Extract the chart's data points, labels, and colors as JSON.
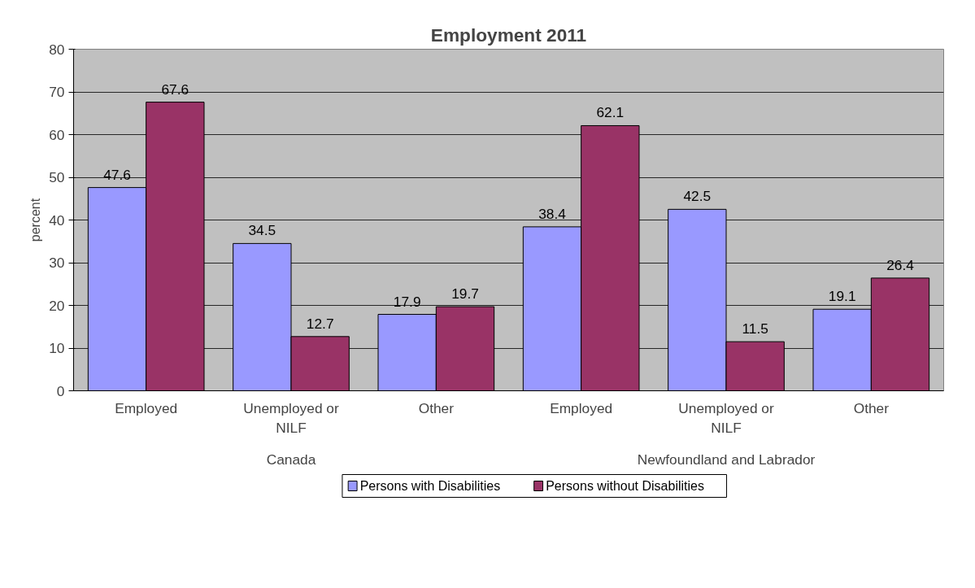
{
  "chart_data": {
    "type": "bar",
    "title": "Employment 2011",
    "ylabel": "percent",
    "categories": [
      "Employed",
      "Unemployed or NILF",
      "Other",
      "Employed",
      "Unemployed or NILF",
      "Other"
    ],
    "annotations": [
      "Canada",
      "Newfoundland and Labrador"
    ],
    "series": [
      {
        "name": "Persons with Disabilities",
        "color": "#9999ff",
        "values": [
          47.6,
          34.5,
          17.9,
          38.4,
          42.5,
          19.1
        ]
      },
      {
        "name": "Persons without Disabilities",
        "color": "#993366",
        "values": [
          67.6,
          12.7,
          19.7,
          62.1,
          11.5,
          26.4
        ]
      }
    ],
    "ylim": [
      0,
      80
    ],
    "yticks": [
      0,
      10,
      20,
      30,
      40,
      50,
      60,
      70,
      80
    ],
    "grid": "y",
    "legend": "bottom",
    "data_labels": true
  }
}
